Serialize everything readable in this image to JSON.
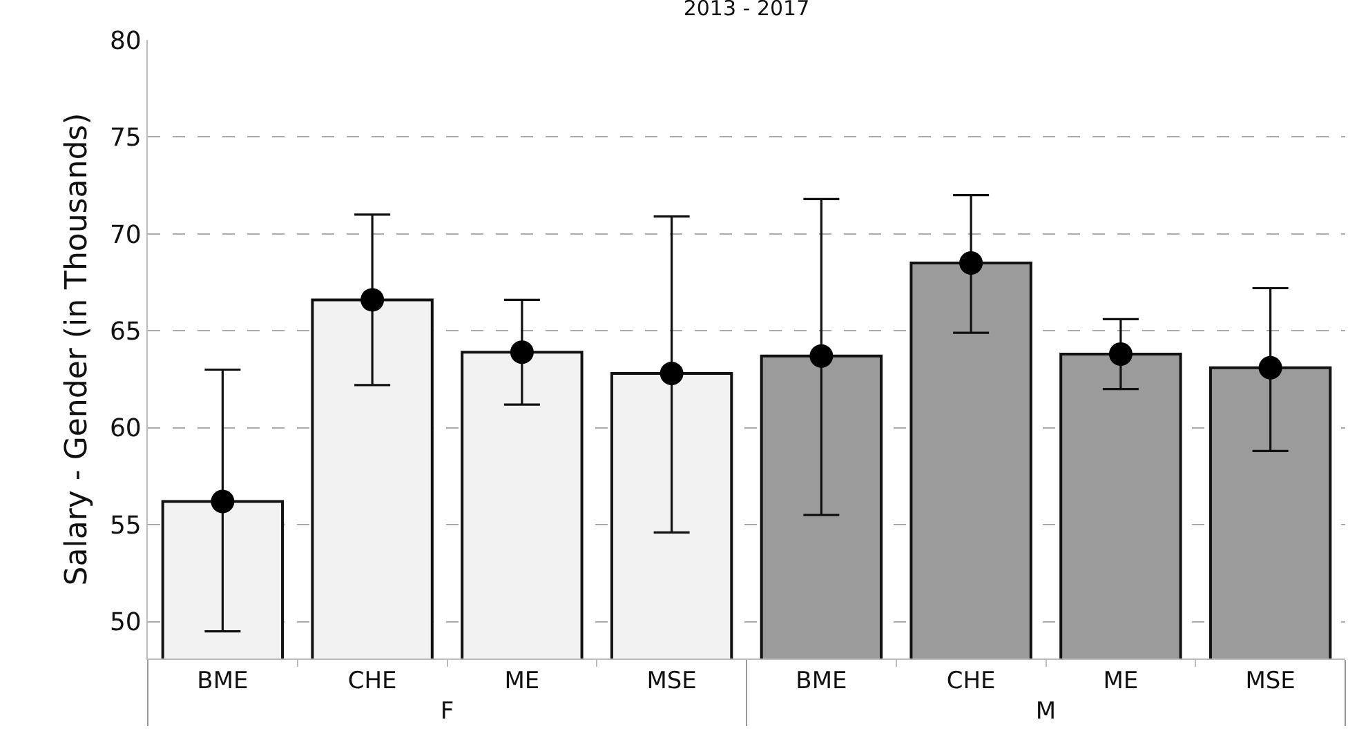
{
  "chart_data": {
    "type": "bar",
    "title": "2013 - 2017",
    "ylabel": "Salary - Gender (in Thousands)",
    "categories": [
      "BME",
      "CHE",
      "ME",
      "MSE",
      "BME",
      "CHE",
      "ME",
      "MSE"
    ],
    "series": [
      {
        "name": "F",
        "color": "#f2f2f2",
        "values": [
          56.2,
          66.6,
          63.9,
          62.8,
          null,
          null,
          null,
          null
        ]
      },
      {
        "name": "M",
        "color": "#9b9b9b",
        "values": [
          null,
          null,
          null,
          null,
          63.7,
          68.5,
          63.8,
          63.1
        ]
      },
      {
        "type": "scatter",
        "color": "#000000",
        "values": [
          56.2,
          66.6,
          63.9,
          62.8,
          63.7,
          68.5,
          63.8,
          63.1
        ],
        "errors": [
          [
            49.5,
            63.0
          ],
          [
            62.2,
            71.0
          ],
          [
            61.2,
            66.6
          ],
          [
            54.6,
            70.9
          ],
          [
            55.5,
            71.8
          ],
          [
            64.9,
            72.0
          ],
          [
            62.0,
            65.6
          ],
          [
            58.8,
            67.2
          ]
        ]
      }
    ],
    "ylim": [
      48.1,
      80
    ],
    "yticks": [
      50,
      55,
      60,
      65,
      70,
      75,
      80
    ],
    "grid": "y",
    "legend": false,
    "marker": "circle"
  }
}
